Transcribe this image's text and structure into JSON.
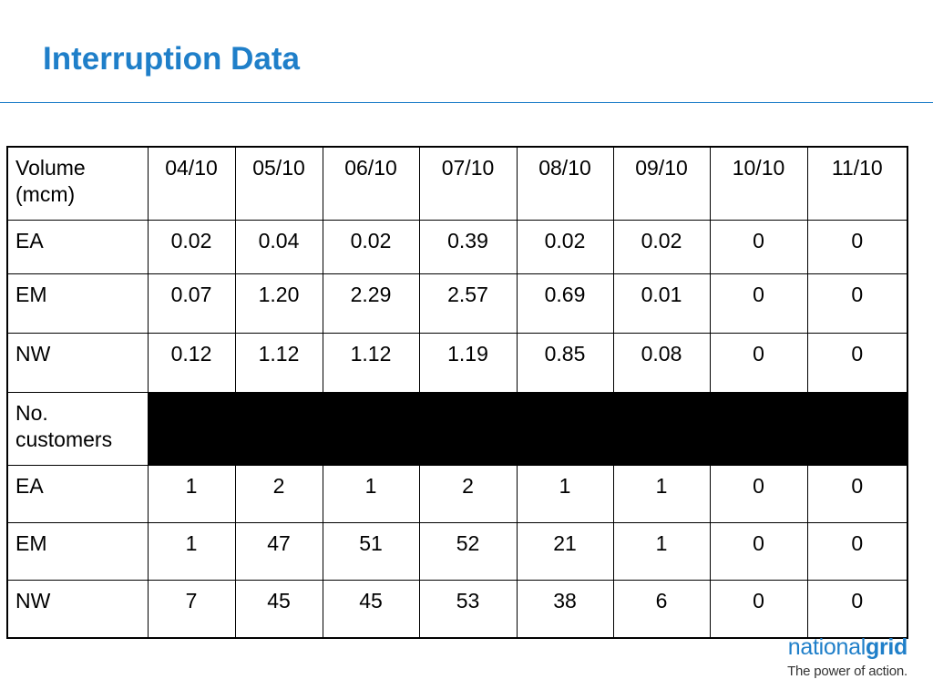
{
  "title": "Interruption Data",
  "table": {
    "header": {
      "label": "Volume (mcm)",
      "columns": [
        "04/10",
        "05/10",
        "06/10",
        "07/10",
        "08/10",
        "09/10",
        "10/10",
        "11/10"
      ]
    },
    "volume_rows": [
      {
        "label": "EA",
        "values": [
          "0.02",
          "0.04",
          "0.02",
          "0.39",
          "0.02",
          "0.02",
          "0",
          "0"
        ]
      },
      {
        "label": "EM",
        "values": [
          "0.07",
          "1.20",
          "2.29",
          "2.57",
          "0.69",
          "0.01",
          "0",
          "0"
        ]
      },
      {
        "label": "NW",
        "values": [
          "0.12",
          "1.12",
          "1.12",
          "1.19",
          "0.85",
          "0.08",
          "0",
          "0"
        ]
      }
    ],
    "section_label": "No. customers",
    "customer_rows": [
      {
        "label": "EA",
        "values": [
          "1",
          "2",
          "1",
          "2",
          "1",
          "1",
          "0",
          "0"
        ]
      },
      {
        "label": "EM",
        "values": [
          "1",
          "47",
          "51",
          "52",
          "21",
          "1",
          "0",
          "0"
        ]
      },
      {
        "label": "NW",
        "values": [
          "7",
          "45",
          "45",
          "53",
          "38",
          "6",
          "0",
          "0"
        ]
      }
    ]
  },
  "logo": {
    "name_light": "national",
    "name_bold": "grid",
    "tagline": "The power of action."
  }
}
